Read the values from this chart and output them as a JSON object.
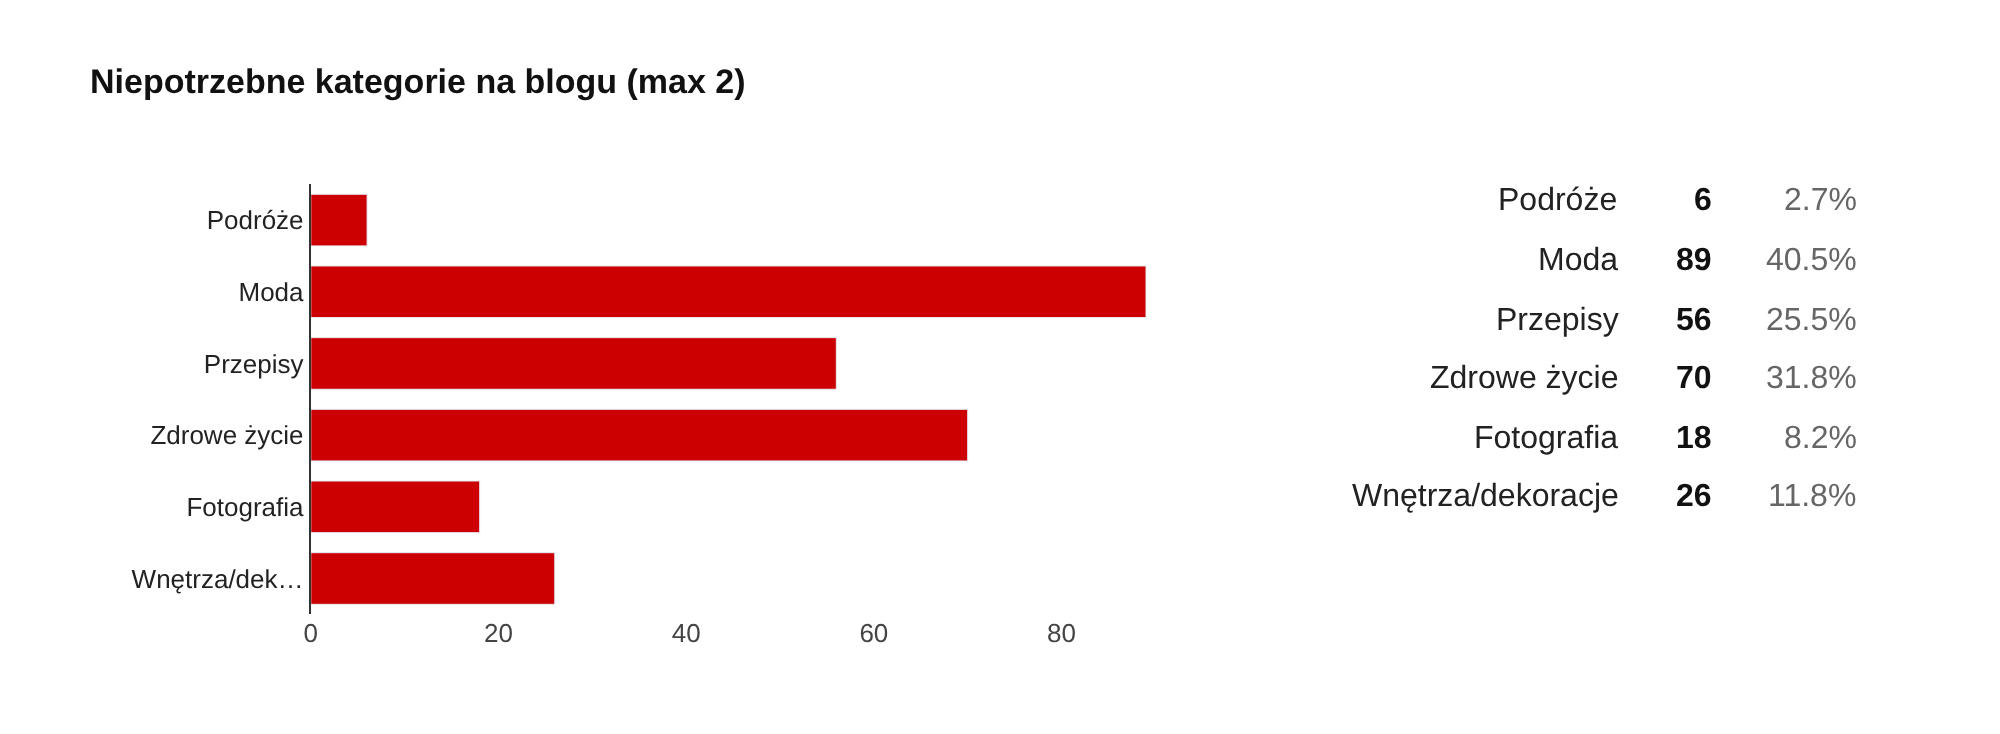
{
  "chart_data": [
    {
      "type": "bar",
      "title": "Niepotrzebne kategorie na blogu (max 2)",
      "orientation": "horizontal",
      "categories": [
        "Podróże",
        "Moda",
        "Przepisy",
        "Zdrowe życie",
        "Fotografia",
        "Wnętrza/dek…"
      ],
      "values": [
        6,
        89,
        56,
        70,
        18,
        26
      ],
      "color": "#cc0000",
      "xlim": [
        0,
        90
      ],
      "xticks": [
        0,
        20,
        40,
        60,
        80
      ]
    },
    {
      "type": "other",
      "categories": [
        "Podróże",
        "Moda",
        "Przepisy",
        "Zdrowe życie",
        "Fotografia",
        "Wnętrza/dekoracje"
      ],
      "values": [
        6,
        89,
        56,
        70,
        18,
        26
      ],
      "data_labels": true,
      "annotations": [
        "2.7%",
        "40.5%",
        "25.5%",
        "31.8%",
        "8.2%",
        "11.8%"
      ]
    }
  ]
}
